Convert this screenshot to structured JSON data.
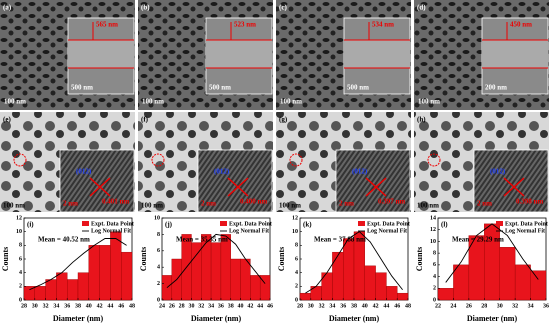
{
  "sem_panels": [
    {
      "label": "(a)",
      "thickness": "565 nm",
      "scale": "100 nm",
      "inset_scale": "500 nm"
    },
    {
      "label": "(b)",
      "thickness": "523 nm",
      "scale": "100 nm",
      "inset_scale": "500 nm"
    },
    {
      "label": "(c)",
      "thickness": "534 nm",
      "scale": "100 nm",
      "inset_scale": "500 nm"
    },
    {
      "label": "(d)",
      "thickness": "450 nm",
      "scale": "100 nm",
      "inset_scale": "200 nm"
    }
  ],
  "tem_panels": [
    {
      "label": "(e)",
      "plane": "(012)",
      "spacing": "0.401 nm",
      "inset_scale": "2 nm",
      "scale": "100 nm"
    },
    {
      "label": "(f)",
      "plane": "(012)",
      "spacing": "0.400 nm",
      "inset_scale": "2 nm",
      "scale": "100 nm"
    },
    {
      "label": "(g)",
      "plane": "(012)",
      "spacing": "0.397 nm",
      "inset_scale": "2 nm",
      "scale": "100 nm"
    },
    {
      "label": "(h)",
      "plane": "(012)",
      "spacing": "0.398 nm",
      "inset_scale": "2 nm",
      "scale": "100 nm"
    }
  ],
  "chart_data": [
    {
      "type": "histogram",
      "label": "(i)",
      "annotation": "Mean = 40.52 nm",
      "x_label": "Diameter (nm)",
      "y_label": "Counts",
      "bins": [
        28,
        30,
        32,
        34,
        36,
        38,
        40,
        42,
        44,
        46,
        48
      ],
      "series": [
        {
          "name": "Expt. Data Point",
          "color": "#e8141c",
          "values": [
            2,
            2,
            3,
            4,
            3,
            4,
            8,
            8,
            10,
            7
          ]
        },
        {
          "name": "Log Normal Fit",
          "color": "#000000",
          "x": [
            29,
            31,
            33,
            35,
            37,
            39,
            41,
            43,
            45,
            47
          ],
          "values": [
            1.5,
            2.2,
            3,
            4,
            5.5,
            6.8,
            8,
            9,
            9,
            8
          ]
        }
      ],
      "xlim": [
        28,
        48
      ],
      "xticks": [
        28,
        30,
        32,
        34,
        36,
        38,
        40,
        42,
        44,
        46,
        48
      ],
      "ylim": [
        0,
        12
      ],
      "yticks": [
        0,
        2,
        4,
        6,
        8,
        10,
        12
      ]
    },
    {
      "type": "histogram",
      "label": "(j)",
      "annotation": "Mean = 35.35 nm",
      "x_label": "Diameter (nm)",
      "y_label": "Counts",
      "bins": [
        24,
        26,
        28,
        30,
        32,
        34,
        36,
        38,
        40,
        42,
        44,
        46
      ],
      "series": [
        {
          "name": "Expt. Data Point",
          "color": "#e8141c",
          "values": [
            3,
            5,
            8,
            7,
            8,
            7,
            8,
            5,
            5,
            3,
            3
          ]
        },
        {
          "name": "Log Normal Fit",
          "color": "#000000",
          "x": [
            25,
            27,
            29,
            31,
            33,
            35,
            37,
            39,
            41,
            43,
            45
          ],
          "values": [
            1.5,
            2.5,
            4,
            5.5,
            7,
            8,
            7.8,
            6.8,
            5,
            3.5,
            2
          ]
        }
      ],
      "xlim": [
        24,
        46
      ],
      "xticks": [
        24,
        26,
        28,
        30,
        32,
        34,
        36,
        38,
        40,
        42,
        44,
        46
      ],
      "ylim": [
        0,
        10
      ],
      "yticks": [
        0,
        2,
        4,
        6,
        8,
        10
      ]
    },
    {
      "type": "histogram",
      "label": "(k)",
      "annotation": "Mean = 37.88 nm",
      "x_label": "Diameter (nm)",
      "y_label": "Counts",
      "bins": [
        28,
        30,
        32,
        34,
        36,
        38,
        40,
        42,
        44,
        46,
        48
      ],
      "series": [
        {
          "name": "Expt. Data Point",
          "color": "#e8141c",
          "values": [
            1,
            2,
            4,
            7,
            9,
            10,
            5,
            4,
            2,
            1
          ]
        },
        {
          "name": "Log Normal Fit",
          "color": "#000000",
          "x": [
            29,
            31,
            33,
            35,
            37,
            39,
            41,
            43,
            45,
            47
          ],
          "values": [
            1,
            2,
            4,
            6.5,
            9,
            10,
            8.5,
            6,
            3.5,
            1.5
          ]
        }
      ],
      "xlim": [
        28,
        48
      ],
      "xticks": [
        28,
        30,
        32,
        34,
        36,
        38,
        40,
        42,
        44,
        46,
        48
      ],
      "ylim": [
        0,
        12
      ],
      "yticks": [
        0,
        2,
        4,
        6,
        8,
        10,
        12
      ]
    },
    {
      "type": "histogram",
      "label": "(l)",
      "annotation": "Mean = 29.29 nm",
      "x_label": "Diameter (nm)",
      "y_label": "Counts",
      "bins": [
        22,
        24,
        26,
        28,
        30,
        32,
        34,
        36
      ],
      "series": [
        {
          "name": "Expt. Data Point",
          "color": "#e8141c",
          "values": [
            2,
            6,
            11,
            13,
            9,
            6,
            5
          ]
        },
        {
          "name": "Log Normal Fit",
          "color": "#000000",
          "x": [
            23,
            25,
            27,
            29,
            31,
            33,
            35
          ],
          "values": [
            3,
            6.5,
            11,
            13,
            11,
            7,
            3.5
          ]
        }
      ],
      "xlim": [
        22,
        36
      ],
      "xticks": [
        22,
        24,
        26,
        28,
        30,
        32,
        34,
        36
      ],
      "ylim": [
        0,
        14
      ],
      "yticks": [
        0,
        2,
        4,
        6,
        8,
        10,
        12,
        14
      ]
    }
  ]
}
